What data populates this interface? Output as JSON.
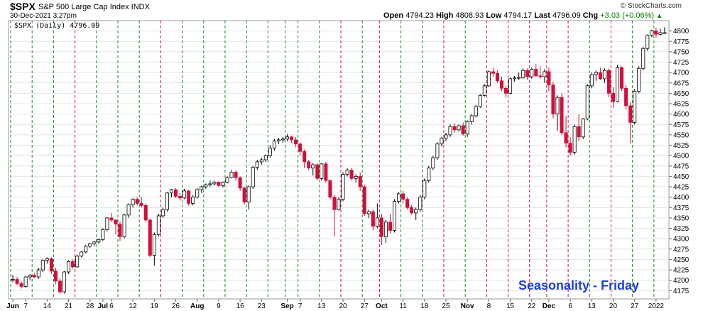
{
  "header": {
    "symbol": "$SPX",
    "name": "S&P 500 Large Cap Index INDX",
    "brand": "© StockCharts.com",
    "datetime": "30-Dec-2021 3:27pm",
    "open_label": "Open",
    "open": "4794.23",
    "high_label": "High",
    "high": "4808.93",
    "low_label": "Low",
    "low": "4794.17",
    "last_label": "Last",
    "last": "4796.09",
    "chg_label": "Chg",
    "chg": "+3.03 (+0.06%)",
    "up_icon": "up-triangle-icon"
  },
  "legend": {
    "text": "$SPX (Daily) 4796.09"
  },
  "annotation": {
    "text": "Seasonality - Friday"
  },
  "colors": {
    "up": "#ffffff",
    "down": "#d0103a",
    "green_line": "#1a8a1a",
    "red_line": "#d0103a",
    "grid": "#e4e4e4",
    "annotation": "#1f3fdb"
  },
  "chart_data": {
    "type": "candlestick",
    "ylim": [
      4155,
      4825
    ],
    "y_ticks": [
      4175,
      4200,
      4225,
      4250,
      4275,
      4300,
      4325,
      4350,
      4375,
      4400,
      4425,
      4450,
      4475,
      4500,
      4525,
      4550,
      4575,
      4600,
      4625,
      4650,
      4675,
      4700,
      4725,
      4750,
      4775,
      4800
    ],
    "x_tick_labels": [
      "Jun",
      "7",
      "14",
      "21",
      "28",
      "Jul",
      "6",
      "12",
      "19",
      "26",
      "Aug",
      "9",
      "16",
      "23",
      "Sep",
      "7",
      "13",
      "20",
      "27",
      "Oct",
      "11",
      "18",
      "25",
      "Nov",
      "8",
      "15",
      "22",
      "Dec",
      "6",
      "13",
      "20",
      "27",
      "2022"
    ],
    "x_tick_index": [
      0,
      3,
      8,
      13,
      18,
      21,
      23,
      28,
      33,
      38,
      43,
      48,
      53,
      58,
      64,
      67,
      72,
      77,
      82,
      86,
      91,
      96,
      101,
      106,
      111,
      116,
      121,
      125,
      130,
      135,
      140,
      145,
      150
    ],
    "friday_lines": [
      {
        "i": -1,
        "c": "g"
      },
      {
        "i": 4,
        "c": "g"
      },
      {
        "i": 9,
        "c": "g"
      },
      {
        "i": 14,
        "c": "r"
      },
      {
        "i": 19,
        "c": "g"
      },
      {
        "i": 24,
        "c": "g"
      },
      {
        "i": 29,
        "c": "g"
      },
      {
        "i": 34,
        "c": "r"
      },
      {
        "i": 39,
        "c": "g"
      },
      {
        "i": 44,
        "c": "g"
      },
      {
        "i": 49,
        "c": "g"
      },
      {
        "i": 54,
        "c": "g"
      },
      {
        "i": 59,
        "c": "g"
      },
      {
        "i": 63,
        "c": "g"
      },
      {
        "i": 66,
        "c": "g"
      },
      {
        "i": 71,
        "c": "g"
      },
      {
        "i": 76,
        "c": "r"
      },
      {
        "i": 81,
        "c": "g"
      },
      {
        "i": 85,
        "c": "r"
      },
      {
        "i": 90,
        "c": "g"
      },
      {
        "i": 95,
        "c": "g"
      },
      {
        "i": 100,
        "c": "r"
      },
      {
        "i": 105,
        "c": "g"
      },
      {
        "i": 110,
        "c": "r"
      },
      {
        "i": 115,
        "c": "r"
      },
      {
        "i": 120,
        "c": "r"
      },
      {
        "i": 124,
        "c": "r"
      },
      {
        "i": 129,
        "c": "r"
      },
      {
        "i": 134,
        "c": "g"
      },
      {
        "i": 139,
        "c": "r"
      },
      {
        "i": 144,
        "c": "g"
      },
      {
        "i": 149,
        "c": "g"
      }
    ],
    "candles": [
      [
        4200,
        4213,
        4195,
        4202
      ],
      [
        4202,
        4208,
        4188,
        4192
      ],
      [
        4192,
        4197,
        4180,
        4185
      ],
      [
        4185,
        4210,
        4182,
        4208
      ],
      [
        4208,
        4215,
        4200,
        4212
      ],
      [
        4212,
        4218,
        4205,
        4208
      ],
      [
        4208,
        4230,
        4203,
        4225
      ],
      [
        4225,
        4250,
        4220,
        4248
      ],
      [
        4248,
        4255,
        4240,
        4252
      ],
      [
        4252,
        4255,
        4215,
        4222
      ],
      [
        4222,
        4230,
        4190,
        4198
      ],
      [
        4198,
        4205,
        4168,
        4172
      ],
      [
        4172,
        4222,
        4168,
        4220
      ],
      [
        4220,
        4248,
        4215,
        4245
      ],
      [
        4245,
        4250,
        4228,
        4232
      ],
      [
        4232,
        4262,
        4230,
        4258
      ],
      [
        4258,
        4270,
        4255,
        4268
      ],
      [
        4268,
        4285,
        4265,
        4282
      ],
      [
        4282,
        4290,
        4278,
        4288
      ],
      [
        4288,
        4295,
        4282,
        4292
      ],
      [
        4292,
        4300,
        4288,
        4298
      ],
      [
        4298,
        4325,
        4295,
        4322
      ],
      [
        4322,
        4352,
        4318,
        4350
      ],
      [
        4350,
        4362,
        4340,
        4345
      ],
      [
        4345,
        4347,
        4310,
        4335
      ],
      [
        4335,
        4342,
        4295,
        4305
      ],
      [
        4305,
        4360,
        4300,
        4357
      ],
      [
        4357,
        4385,
        4350,
        4382
      ],
      [
        4382,
        4398,
        4375,
        4395
      ],
      [
        4395,
        4400,
        4380,
        4385
      ],
      [
        4385,
        4400,
        4375,
        4380
      ],
      [
        4380,
        4385,
        4340,
        4345
      ],
      [
        4345,
        4348,
        4255,
        4260
      ],
      [
        4260,
        4315,
        4235,
        4310
      ],
      [
        4310,
        4360,
        4305,
        4355
      ],
      [
        4355,
        4375,
        4350,
        4370
      ],
      [
        4370,
        4412,
        4365,
        4410
      ],
      [
        4410,
        4420,
        4400,
        4418
      ],
      [
        4418,
        4422,
        4398,
        4402
      ],
      [
        4402,
        4410,
        4392,
        4398
      ],
      [
        4398,
        4420,
        4395,
        4415
      ],
      [
        4415,
        4417,
        4380,
        4385
      ],
      [
        4385,
        4405,
        4380,
        4400
      ],
      [
        4400,
        4422,
        4397,
        4418
      ],
      [
        4418,
        4428,
        4410,
        4425
      ],
      [
        4425,
        4433,
        4420,
        4430
      ],
      [
        4430,
        4440,
        4425,
        4432
      ],
      [
        4432,
        4440,
        4428,
        4436
      ],
      [
        4436,
        4438,
        4425,
        4428
      ],
      [
        4428,
        4438,
        4423,
        4436
      ],
      [
        4436,
        4450,
        4433,
        4447
      ],
      [
        4447,
        4465,
        4445,
        4460
      ],
      [
        4460,
        4465,
        4440,
        4447
      ],
      [
        4447,
        4450,
        4415,
        4422
      ],
      [
        4422,
        4425,
        4382,
        4388
      ],
      [
        4388,
        4428,
        4370,
        4425
      ],
      [
        4425,
        4475,
        4420,
        4472
      ],
      [
        4472,
        4490,
        4465,
        4485
      ],
      [
        4485,
        4495,
        4478,
        4490
      ],
      [
        4490,
        4503,
        4485,
        4500
      ],
      [
        4500,
        4525,
        4495,
        4518
      ],
      [
        4518,
        4540,
        4512,
        4535
      ],
      [
        4535,
        4543,
        4528,
        4538
      ],
      [
        4538,
        4545,
        4530,
        4540
      ],
      [
        4540,
        4552,
        4535,
        4545
      ],
      [
        4545,
        4548,
        4530,
        4538
      ],
      [
        4538,
        4545,
        4520,
        4528
      ],
      [
        4528,
        4532,
        4500,
        4510
      ],
      [
        4510,
        4515,
        4470,
        4485
      ],
      [
        4485,
        4490,
        4465,
        4470
      ],
      [
        4470,
        4482,
        4452,
        4478
      ],
      [
        4478,
        4482,
        4440,
        4445
      ],
      [
        4445,
        4482,
        4440,
        4480
      ],
      [
        4480,
        4485,
        4435,
        4440
      ],
      [
        4440,
        4442,
        4395,
        4400
      ],
      [
        4400,
        4405,
        4305,
        4370
      ],
      [
        4370,
        4400,
        4368,
        4395
      ],
      [
        4395,
        4460,
        4390,
        4455
      ],
      [
        4455,
        4470,
        4450,
        4465
      ],
      [
        4465,
        4470,
        4440,
        4445
      ],
      [
        4445,
        4455,
        4435,
        4450
      ],
      [
        4450,
        4460,
        4415,
        4425
      ],
      [
        4425,
        4430,
        4355,
        4360
      ],
      [
        4360,
        4370,
        4350,
        4365
      ],
      [
        4365,
        4370,
        4320,
        4330
      ],
      [
        4330,
        4385,
        4325,
        4350
      ],
      [
        4350,
        4360,
        4285,
        4305
      ],
      [
        4305,
        4345,
        4290,
        4340
      ],
      [
        4340,
        4360,
        4312,
        4320
      ],
      [
        4320,
        4395,
        4315,
        4390
      ],
      [
        4390,
        4412,
        4385,
        4408
      ],
      [
        4408,
        4415,
        4385,
        4395
      ],
      [
        4395,
        4400,
        4370,
        4375
      ],
      [
        4375,
        4382,
        4358,
        4362
      ],
      [
        4362,
        4375,
        4345,
        4370
      ],
      [
        4370,
        4405,
        4365,
        4400
      ],
      [
        4400,
        4445,
        4395,
        4440
      ],
      [
        4440,
        4475,
        4435,
        4470
      ],
      [
        4470,
        4500,
        4465,
        4495
      ],
      [
        4495,
        4532,
        4490,
        4528
      ],
      [
        4528,
        4545,
        4522,
        4542
      ],
      [
        4542,
        4555,
        4535,
        4550
      ],
      [
        4550,
        4575,
        4545,
        4570
      ],
      [
        4570,
        4578,
        4555,
        4562
      ],
      [
        4562,
        4575,
        4558,
        4572
      ],
      [
        4572,
        4580,
        4548,
        4552
      ],
      [
        4552,
        4585,
        4545,
        4582
      ],
      [
        4582,
        4600,
        4575,
        4596
      ],
      [
        4596,
        4622,
        4592,
        4618
      ],
      [
        4618,
        4648,
        4615,
        4645
      ],
      [
        4645,
        4672,
        4642,
        4668
      ],
      [
        4668,
        4705,
        4665,
        4702
      ],
      [
        4702,
        4712,
        4690,
        4698
      ],
      [
        4698,
        4705,
        4675,
        4680
      ],
      [
        4680,
        4690,
        4655,
        4662
      ],
      [
        4662,
        4668,
        4640,
        4650
      ],
      [
        4650,
        4688,
        4648,
        4685
      ],
      [
        4685,
        4692,
        4678,
        4687
      ],
      [
        4687,
        4700,
        4682,
        4688
      ],
      [
        4688,
        4710,
        4685,
        4705
      ],
      [
        4705,
        4710,
        4682,
        4690
      ],
      [
        4690,
        4712,
        4685,
        4708
      ],
      [
        4708,
        4720,
        4690,
        4692
      ],
      [
        4692,
        4715,
        4685,
        4690
      ],
      [
        4690,
        4708,
        4675,
        4702
      ],
      [
        4702,
        4712,
        4655,
        4670
      ],
      [
        4670,
        4678,
        4590,
        4600
      ],
      [
        4600,
        4645,
        4560,
        4640
      ],
      [
        4640,
        4650,
        4550,
        4555
      ],
      [
        4555,
        4595,
        4520,
        4530
      ],
      [
        4530,
        4545,
        4500,
        4508
      ],
      [
        4508,
        4575,
        4502,
        4570
      ],
      [
        4570,
        4600,
        4535,
        4545
      ],
      [
        4545,
        4590,
        4540,
        4588
      ],
      [
        4588,
        4672,
        4585,
        4668
      ],
      [
        4668,
        4700,
        4662,
        4695
      ],
      [
        4695,
        4705,
        4680,
        4700
      ],
      [
        4700,
        4712,
        4682,
        4685
      ],
      [
        4685,
        4710,
        4675,
        4705
      ],
      [
        4705,
        4710,
        4640,
        4650
      ],
      [
        4650,
        4665,
        4615,
        4630
      ],
      [
        4630,
        4718,
        4628,
        4712
      ],
      [
        4712,
        4715,
        4655,
        4662
      ],
      [
        4662,
        4670,
        4610,
        4620
      ],
      [
        4620,
        4628,
        4530,
        4580
      ],
      [
        4580,
        4660,
        4575,
        4655
      ],
      [
        4655,
        4715,
        4650,
        4710
      ],
      [
        4710,
        4762,
        4705,
        4758
      ],
      [
        4758,
        4792,
        4752,
        4790
      ],
      [
        4790,
        4803,
        4785,
        4800
      ],
      [
        4800,
        4808,
        4784,
        4792
      ],
      [
        4792,
        4805,
        4789,
        4796
      ],
      [
        4794,
        4809,
        4794,
        4796
      ]
    ]
  }
}
